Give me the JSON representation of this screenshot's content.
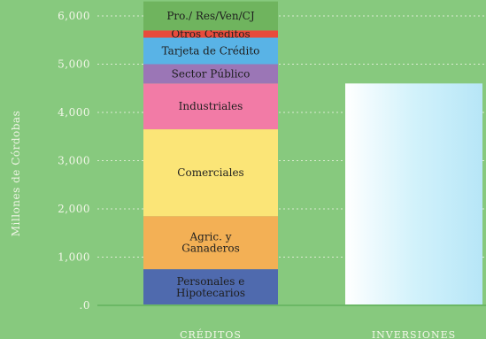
{
  "chart_data": {
    "type": "bar",
    "stacked": true,
    "ylabel": "Millones de Córdobas",
    "ylim": [
      0,
      6000
    ],
    "yticks": [
      0,
      1000,
      2000,
      3000,
      4000,
      5000,
      6000
    ],
    "ytick_labels": [
      ".0",
      "1,000",
      "2,000",
      "3,000",
      "4,000",
      "5,000",
      "6,000"
    ],
    "grid": true,
    "categories": [
      "CRÉDITOS",
      "INVERSIONES"
    ],
    "stacks": [
      {
        "category": "CRÉDITOS",
        "segments": [
          {
            "name": "Personales e Hipotecarios",
            "value": 750,
            "color": "#4f6aae"
          },
          {
            "name": "Agric. y Ganaderos",
            "value": 1100,
            "color": "#f3b055"
          },
          {
            "name": "Comerciales",
            "value": 1800,
            "color": "#fbe577"
          },
          {
            "name": "Industriales",
            "value": 950,
            "color": "#f27ba6"
          },
          {
            "name": "Sector Público",
            "value": 400,
            "color": "#9b76b6"
          },
          {
            "name": "Tarjeta de Crédito",
            "value": 550,
            "color": "#59b3e6"
          },
          {
            "name": "Otros Créditos",
            "value": 150,
            "color": "#e84b3c"
          },
          {
            "name": "Pro./ Res/Ven/CJ",
            "value": 600,
            "color": "#6fb45e"
          }
        ]
      },
      {
        "category": "INVERSIONES",
        "segments": [
          {
            "name": "",
            "value": 4600,
            "color": "#c6eefb"
          }
        ]
      }
    ]
  }
}
